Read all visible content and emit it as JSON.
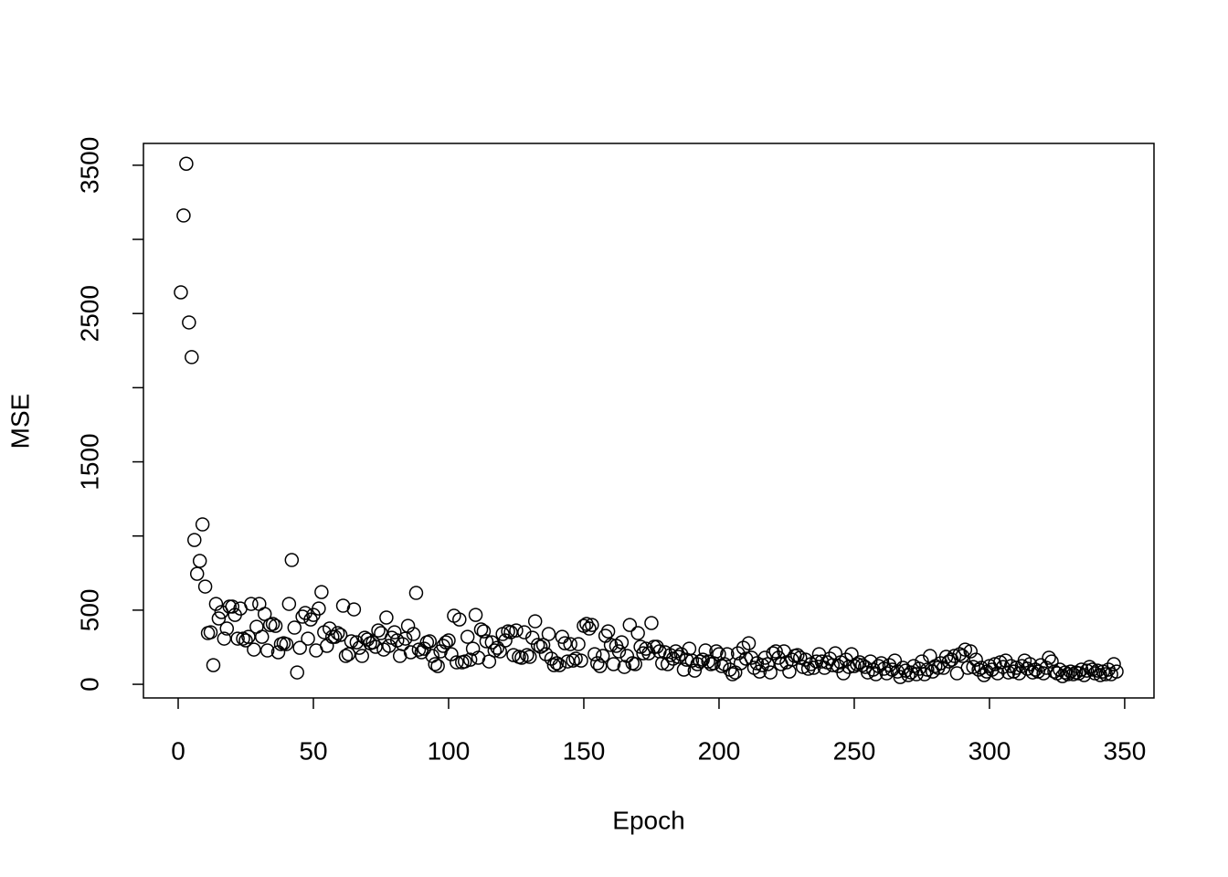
{
  "chart_data": {
    "type": "scatter",
    "x_label": "Epoch",
    "y_label": "MSE",
    "xlim": [
      -12.84,
      360.84
    ],
    "xticks": [
      0,
      50,
      100,
      150,
      200,
      250,
      300,
      350
    ],
    "ylim": [
      -92,
      3647
    ],
    "yticks": [
      0,
      500,
      1500,
      2500,
      3500
    ],
    "yticks_unlabeled": [
      1000,
      2000,
      3000
    ],
    "color": "#000000",
    "x": [
      1,
      2,
      3,
      4,
      5,
      6,
      7,
      8,
      9,
      10,
      11,
      12,
      13,
      14,
      15,
      16,
      17,
      18,
      19,
      20,
      21,
      22,
      23,
      24,
      25,
      26,
      27,
      28,
      29,
      30,
      31,
      32,
      33,
      34,
      35,
      36,
      37,
      38,
      39,
      40,
      41,
      42,
      43,
      44,
      45,
      46,
      47,
      48,
      49,
      50,
      51,
      52,
      53,
      54,
      55,
      56,
      57,
      58,
      59,
      60,
      61,
      62,
      63,
      64,
      65,
      66,
      67,
      68,
      69,
      70,
      71,
      72,
      73,
      74,
      75,
      76,
      77,
      78,
      79,
      80,
      81,
      82,
      83,
      84,
      85,
      86,
      87,
      88,
      89,
      90,
      91,
      92,
      93,
      94,
      95,
      96,
      97,
      98,
      99,
      100,
      101,
      102,
      103,
      104,
      105,
      106,
      107,
      108,
      109,
      110,
      111,
      112,
      113,
      114,
      115,
      116,
      117,
      118,
      119,
      120,
      121,
      122,
      123,
      124,
      125,
      126,
      127,
      128,
      129,
      130,
      131,
      132,
      133,
      134,
      135,
      136,
      137,
      138,
      139,
      140,
      141,
      142,
      143,
      144,
      145,
      146,
      147,
      148,
      149,
      150,
      151,
      152,
      153,
      154,
      155,
      156,
      157,
      158,
      159,
      160,
      161,
      162,
      163,
      164,
      165,
      166,
      167,
      168,
      169,
      170,
      171,
      172,
      173,
      174,
      175,
      176,
      177,
      178,
      179,
      180,
      181,
      182,
      183,
      184,
      185,
      186,
      187,
      188,
      189,
      190,
      191,
      192,
      193,
      194,
      195,
      196,
      197,
      198,
      199,
      200,
      201,
      202,
      203,
      204,
      205,
      206,
      207,
      208,
      209,
      210,
      211,
      212,
      213,
      214,
      215,
      216,
      217,
      218,
      219,
      220,
      221,
      222,
      223,
      224,
      225,
      226,
      227,
      228,
      229,
      230,
      231,
      232,
      233,
      234,
      235,
      236,
      237,
      238,
      239,
      240,
      241,
      242,
      243,
      244,
      245,
      246,
      247,
      248,
      249,
      250,
      251,
      252,
      253,
      254,
      255,
      256,
      257,
      258,
      259,
      260,
      261,
      262,
      263,
      264,
      265,
      266,
      267,
      268,
      269,
      270,
      271,
      272,
      273,
      274,
      275,
      276,
      277,
      278,
      279,
      280,
      281,
      282,
      283,
      284,
      285,
      286,
      287,
      288,
      289,
      290,
      291,
      292,
      293,
      294,
      295,
      296,
      297,
      298,
      299,
      300,
      301,
      302,
      303,
      304,
      305,
      306,
      307,
      308,
      309,
      310,
      311,
      312,
      313,
      314,
      315,
      316,
      317,
      318,
      319,
      320,
      321,
      322,
      323,
      324,
      325,
      326,
      327,
      328,
      329,
      330,
      331,
      332,
      333,
      334,
      335,
      336,
      337,
      338,
      339,
      340,
      341,
      342,
      343,
      344,
      345,
      346,
      347
    ],
    "values": [
      2643,
      3161,
      3510,
      2440,
      2206,
      973,
      745,
      832,
      1078,
      659,
      345,
      351,
      129,
      542,
      444,
      487,
      308,
      376,
      524,
      524,
      468,
      308,
      511,
      308,
      296,
      320,
      542,
      234,
      388,
      542,
      320,
      474,
      228,
      400,
      407,
      394,
      216,
      271,
      277,
      271,
      542,
      838,
      382,
      80,
      246,
      456,
      481,
      308,
      437,
      468,
      228,
      511,
      622,
      351,
      259,
      376,
      320,
      320,
      345,
      333,
      530,
      191,
      203,
      290,
      505,
      283,
      246,
      191,
      314,
      302,
      277,
      283,
      253,
      363,
      345,
      234,
      450,
      259,
      314,
      351,
      296,
      191,
      271,
      308,
      394,
      216,
      339,
      616,
      234,
      216,
      240,
      283,
      290,
      191,
      136,
      123,
      222,
      259,
      283,
      296,
      203,
      462,
      148,
      437,
      148,
      154,
      320,
      166,
      240,
      468,
      179,
      370,
      357,
      290,
      154,
      283,
      228,
      246,
      222,
      339,
      296,
      357,
      351,
      197,
      363,
      185,
      179,
      351,
      197,
      185,
      314,
      425,
      265,
      253,
      265,
      203,
      339,
      173,
      129,
      142,
      129,
      320,
      277,
      154,
      271,
      160,
      173,
      271,
      160,
      394,
      407,
      376,
      400,
      203,
      142,
      123,
      191,
      327,
      357,
      265,
      136,
      259,
      222,
      283,
      117,
      191,
      400,
      142,
      136,
      345,
      253,
      209,
      240,
      209,
      413,
      253,
      253,
      222,
      142,
      216,
      136,
      197,
      173,
      222,
      185,
      203,
      99,
      166,
      240,
      160,
      92,
      136,
      154,
      166,
      228,
      154,
      136,
      142,
      222,
      203,
      123,
      136,
      203,
      99,
      68,
      80,
      209,
      142,
      246,
      173,
      277,
      179,
      111,
      142,
      86,
      129,
      179,
      136,
      80,
      209,
      222,
      179,
      136,
      222,
      148,
      86,
      166,
      191,
      197,
      179,
      117,
      166,
      105,
      136,
      111,
      154,
      203,
      154,
      111,
      148,
      173,
      129,
      209,
      123,
      148,
      74,
      166,
      117,
      203,
      123,
      136,
      148,
      129,
      117,
      80,
      154,
      99,
      68,
      123,
      142,
      105,
      74,
      129,
      99,
      160,
      86,
      49,
      111,
      92,
      62,
      80,
      123,
      68,
      105,
      154,
      68,
      99,
      191,
      86,
      123,
      111,
      142,
      111,
      185,
      154,
      166,
      191,
      74,
      203,
      191,
      234,
      111,
      222,
      117,
      166,
      99,
      111,
      62,
      86,
      123,
      99,
      136,
      74,
      148,
      117,
      160,
      80,
      123,
      86,
      111,
      74,
      123,
      160,
      105,
      136,
      80,
      99,
      86,
      129,
      74,
      111,
      179,
      154,
      86,
      74,
      99,
      55,
      80,
      68,
      86,
      68,
      80,
      74,
      99,
      62,
      92,
      117,
      99,
      74,
      92,
      62,
      86,
      68,
      99,
      68,
      136,
      86
    ]
  }
}
